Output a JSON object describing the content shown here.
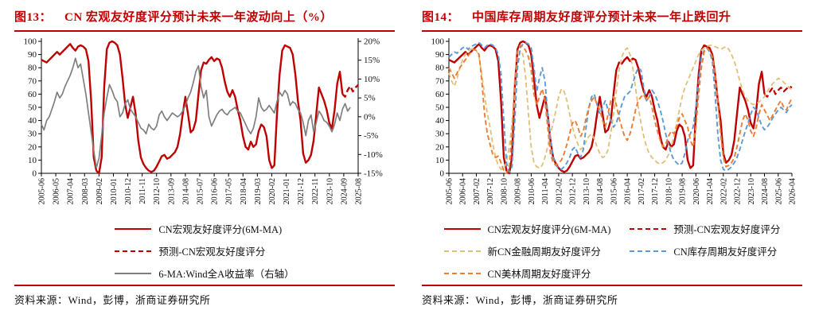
{
  "colors": {
    "accent_red": "#C00000",
    "line_red": "#C00000",
    "line_gray": "#7F7F7F",
    "line_tan": "#DFC07A",
    "line_blue": "#5B9BD5",
    "line_orange": "#ED7D31",
    "axis": "#000000"
  },
  "panels": [
    {
      "figure_label": "图13：",
      "title": "CN 宏观友好度评分预计未来一年波动向上（%）",
      "source_label": "资料来源：",
      "source_text": "Wind，彭博，浙商证券研究所"
    },
    {
      "figure_label": "图14：",
      "title": "中国库存周期友好度评分预计未来一年止跌回升",
      "source_label": "资料来源：",
      "source_text": "Wind，彭博，浙商证券研究所"
    }
  ],
  "chart_data": [
    {
      "type": "line",
      "title": "CN 宏观友好度评分预计未来一年波动向上（%）",
      "grid": false,
      "legend_position": "bottom",
      "x_start": "2005-06",
      "x_end": "2025-08",
      "x_total_months": 242,
      "x_tick_interval_months": 11,
      "x_tick_labels": [
        "2005-06",
        "2006-05",
        "2007-04",
        "2008-03",
        "2009-02",
        "2010-01",
        "2010-12",
        "2011-11",
        "2012-10",
        "2013-09",
        "2014-08",
        "2015-07",
        "2016-06",
        "2017-05",
        "2018-04",
        "2019-03",
        "2020-02",
        "2021-01",
        "2021-12",
        "2022-11",
        "2023-10",
        "2024-09",
        "2025-08"
      ],
      "y_left": {
        "min": 0,
        "max": 100,
        "step": 10,
        "labels": [
          "0",
          "10",
          "20",
          "30",
          "40",
          "50",
          "60",
          "70",
          "80",
          "90",
          "100"
        ]
      },
      "y_right": {
        "min": -15,
        "max": 20,
        "step": 5,
        "labels": [
          "-15%",
          "-10%",
          "-5%",
          "0%",
          "5%",
          "10%",
          "15%",
          "20%"
        ]
      },
      "sample_step_months": 2,
      "series": [
        {
          "name": "CN宏观友好度评分(6M-MA)",
          "axis": "left",
          "color": "#C00000",
          "dash": null,
          "width": 2.4,
          "start_month": 0,
          "values": [
            86,
            85,
            84,
            86,
            88,
            90,
            92,
            90,
            92,
            94,
            96,
            98,
            95,
            93,
            96,
            97,
            96,
            94,
            85,
            55,
            12,
            2,
            0,
            12,
            65,
            94,
            99,
            100,
            99,
            97,
            90,
            72,
            52,
            42,
            50,
            58,
            45,
            25,
            12,
            7,
            4,
            2,
            1,
            2,
            5,
            9,
            13,
            14,
            11,
            12,
            14,
            16,
            20,
            30,
            45,
            58,
            45,
            31,
            33,
            40,
            60,
            78,
            84,
            83,
            86,
            88,
            85,
            87,
            86,
            80,
            70,
            62,
            58,
            63,
            58,
            48,
            40,
            28,
            20,
            18,
            24,
            20,
            22,
            32,
            37,
            35,
            28,
            10,
            4,
            6,
            45,
            75,
            93,
            97,
            96,
            95,
            90,
            75,
            55,
            40,
            15,
            8,
            10,
            14,
            25,
            45,
            65,
            60,
            55,
            48,
            38,
            34,
            48,
            68,
            77,
            60
          ]
        },
        {
          "name": "预测-CN宏观友好度评分",
          "axis": "left",
          "color": "#C00000",
          "dash": "7,4",
          "width": 2.4,
          "start_month": 230,
          "values": [
            60,
            58,
            63,
            66,
            62,
            65,
            67
          ]
        },
        {
          "name": "6-MA:Wind全A收益率（右轴）",
          "axis": "right",
          "color": "#7F7F7F",
          "dash": null,
          "width": 1.7,
          "start_month": 0,
          "values": [
            -2,
            -3.5,
            -1,
            0,
            2,
            4,
            6.5,
            5,
            6,
            8,
            9.5,
            11,
            13,
            15.5,
            13,
            14,
            10,
            6,
            1,
            -4,
            -9,
            -13.5,
            -11,
            -5,
            1,
            5,
            8.5,
            7,
            5,
            4,
            0,
            1,
            3.5,
            4.5,
            2,
            1,
            0,
            -1.5,
            -3,
            -3.5,
            -4.5,
            -2,
            -3,
            -3.5,
            -2.5,
            0.5,
            1.5,
            0,
            -1,
            0,
            1,
            0.5,
            0,
            0.5,
            1.5,
            3,
            5,
            6.5,
            9,
            12,
            13.5,
            8,
            5,
            7,
            0,
            -2.5,
            -1,
            0.5,
            1.5,
            2,
            1,
            0.5,
            1.5,
            2,
            2.5,
            1.5,
            1,
            -0.5,
            -2,
            -3.5,
            -4.5,
            -3,
            0,
            5,
            2.5,
            1.5,
            2,
            3,
            2,
            1,
            4,
            6.5,
            5.5,
            7,
            6,
            3,
            4,
            3.5,
            2,
            1,
            -1.5,
            -5,
            -1,
            0.5,
            -4,
            -1.5,
            1.5,
            0.5,
            -1,
            -1.5,
            -2.5,
            -4,
            -2,
            1,
            -1,
            2,
            3.5,
            1.5,
            2.5
          ]
        }
      ]
    },
    {
      "type": "line",
      "title": "中国库存周期友好度评分预计未来一年止跌回升",
      "grid": false,
      "legend_position": "bottom",
      "x_start": "2005-06",
      "x_end": "2026-04",
      "x_total_months": 250,
      "x_tick_interval_months": 10,
      "x_tick_labels": [
        "2005-06",
        "2006-04",
        "2007-02",
        "2007-12",
        "2008-10",
        "2009-08",
        "2010-06",
        "2011-04",
        "2012-02",
        "2012-12",
        "2013-10",
        "2014-08",
        "2015-06",
        "2016-04",
        "2017-02",
        "2017-12",
        "2018-10",
        "2019-08",
        "2020-06",
        "2021-04",
        "2022-02",
        "2022-12",
        "2023-10",
        "2024-08",
        "2025-06",
        "2026-04"
      ],
      "y_left": {
        "min": 0,
        "max": 100,
        "step": 10,
        "labels": [
          "0",
          "10",
          "20",
          "30",
          "40",
          "50",
          "60",
          "70",
          "80",
          "90",
          "100"
        ]
      },
      "y_right": null,
      "sample_step_months": 2,
      "series": [
        {
          "name": "CN宏观友好度评分(6M-MA)",
          "axis": "left",
          "color": "#C00000",
          "dash": null,
          "width": 2.4,
          "start_month": 0,
          "values": [
            86,
            85,
            84,
            86,
            88,
            90,
            92,
            90,
            92,
            94,
            96,
            98,
            95,
            93,
            96,
            97,
            96,
            94,
            85,
            55,
            12,
            2,
            0,
            12,
            65,
            94,
            99,
            100,
            99,
            97,
            90,
            72,
            52,
            42,
            50,
            58,
            45,
            25,
            12,
            7,
            4,
            2,
            1,
            2,
            5,
            9,
            13,
            14,
            11,
            12,
            14,
            16,
            20,
            30,
            45,
            58,
            45,
            31,
            33,
            40,
            60,
            78,
            84,
            83,
            86,
            88,
            85,
            87,
            86,
            80,
            70,
            62,
            58,
            63,
            58,
            48,
            40,
            28,
            20,
            18,
            24,
            20,
            22,
            32,
            37,
            35,
            28,
            10,
            4,
            6,
            45,
            75,
            93,
            97,
            96,
            95,
            90,
            75,
            55,
            40,
            15,
            8,
            10,
            14,
            25,
            45,
            65,
            60,
            55,
            48,
            38,
            34,
            48,
            68,
            77,
            60
          ]
        },
        {
          "name": "预测-CN宏观友好度评分",
          "axis": "left",
          "color": "#C00000",
          "dash": "7,4",
          "width": 2.2,
          "start_month": 230,
          "values": [
            60,
            58,
            62,
            65,
            60,
            63,
            65,
            62,
            64,
            66,
            65
          ]
        },
        {
          "name": "新CN金融周期友好度评分",
          "axis": "left",
          "color": "#DFC07A",
          "dash": "6,3.5",
          "width": 1.8,
          "start_month": 0,
          "values": [
            76,
            70,
            66,
            72,
            80,
            86,
            90,
            93,
            94,
            95,
            93,
            88,
            75,
            60,
            45,
            35,
            22,
            12,
            6,
            3,
            4,
            8,
            20,
            38,
            55,
            80,
            93,
            90,
            72,
            45,
            20,
            8,
            5,
            4,
            6,
            12,
            20,
            30,
            38,
            48,
            58,
            64,
            62,
            55,
            45,
            35,
            28,
            22,
            18,
            20,
            24,
            28,
            30,
            26,
            20,
            15,
            12,
            13,
            18,
            30,
            45,
            62,
            78,
            88,
            93,
            95,
            90,
            80,
            65,
            50,
            38,
            28,
            20,
            15,
            12,
            10,
            8,
            7,
            8,
            10,
            14,
            20,
            28,
            38,
            48,
            58,
            65,
            70,
            75,
            80,
            85,
            90,
            93,
            95,
            96,
            97,
            97,
            96,
            95,
            94,
            95,
            96,
            94,
            90,
            85,
            78,
            70,
            63,
            58,
            55,
            53,
            52,
            53,
            54,
            56,
            58,
            62,
            65,
            68,
            70,
            72,
            71,
            69,
            67,
            65,
            63
          ]
        },
        {
          "name": "CN库存周期友好度评分",
          "axis": "left",
          "color": "#5B9BD5",
          "dash": "6,3.5",
          "width": 1.9,
          "start_month": 0,
          "values": [
            88,
            90,
            92,
            91,
            93,
            95,
            96,
            94,
            96,
            97,
            98,
            99,
            97,
            95,
            97,
            98,
            97,
            95,
            90,
            75,
            40,
            8,
            1,
            5,
            40,
            80,
            95,
            98,
            99,
            98,
            95,
            80,
            62,
            72,
            80,
            70,
            45,
            25,
            12,
            6,
            4,
            3,
            5,
            8,
            12,
            18,
            20,
            15,
            12,
            18,
            35,
            50,
            58,
            60,
            52,
            45,
            50,
            55,
            48,
            40,
            35,
            38,
            45,
            52,
            58,
            60,
            62,
            68,
            75,
            80,
            78,
            65,
            55,
            58,
            63,
            60,
            55,
            48,
            40,
            30,
            22,
            15,
            10,
            8,
            6,
            8,
            15,
            25,
            30,
            35,
            50,
            70,
            88,
            93,
            95,
            92,
            85,
            60,
            30,
            10,
            3,
            2,
            3,
            5,
            8,
            12,
            18,
            25,
            32,
            38,
            45,
            50,
            48,
            42,
            36,
            33,
            35,
            38,
            42,
            45,
            48,
            50,
            48,
            46,
            50,
            52
          ]
        },
        {
          "name": "CN美林周期友好度评分",
          "axis": "left",
          "color": "#ED7D31",
          "dash": "6,3.5",
          "width": 1.9,
          "start_month": 0,
          "values": [
            80,
            76,
            72,
            76,
            80,
            83,
            86,
            89,
            92,
            94,
            93,
            90,
            70,
            45,
            30,
            22,
            14,
            12,
            13,
            8,
            2,
            0,
            5,
            30,
            70,
            92,
            97,
            96,
            93,
            88,
            78,
            60,
            52,
            58,
            64,
            55,
            35,
            15,
            8,
            6,
            8,
            10,
            15,
            22,
            30,
            38,
            40,
            35,
            28,
            32,
            42,
            50,
            55,
            58,
            52,
            48,
            40,
            35,
            45,
            55,
            58,
            52,
            42,
            35,
            28,
            25,
            30,
            38,
            48,
            55,
            58,
            60,
            55,
            58,
            50,
            40,
            32,
            25,
            20,
            22,
            28,
            32,
            30,
            35,
            42,
            45,
            40,
            35,
            25,
            20,
            35,
            60,
            80,
            92,
            95,
            93,
            88,
            75,
            55,
            30,
            12,
            5,
            6,
            8,
            12,
            20,
            30,
            40,
            45,
            40,
            32,
            28,
            35,
            45,
            52,
            48,
            44,
            40,
            44,
            48,
            52,
            55,
            50,
            48,
            53,
            57
          ]
        }
      ]
    }
  ]
}
